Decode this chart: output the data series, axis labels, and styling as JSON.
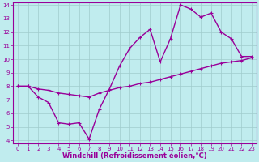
{
  "line1_x": [
    0,
    1,
    2,
    3,
    4,
    5,
    6,
    7,
    8,
    9,
    10,
    11,
    12,
    13,
    14,
    15,
    16,
    17,
    18,
    19,
    20,
    21,
    22,
    23
  ],
  "line1_y": [
    8.0,
    8.0,
    7.8,
    7.7,
    7.5,
    7.4,
    7.3,
    7.2,
    7.5,
    7.7,
    7.9,
    8.0,
    8.2,
    8.3,
    8.5,
    8.7,
    8.9,
    9.1,
    9.3,
    9.5,
    9.7,
    9.8,
    9.9,
    10.1
  ],
  "line2_x": [
    0,
    1,
    2,
    3,
    4,
    5,
    6,
    7,
    8,
    9,
    10,
    11,
    12,
    13,
    14,
    15,
    16,
    17,
    18,
    19,
    20,
    21,
    22,
    23
  ],
  "line2_y": [
    8.0,
    8.0,
    7.2,
    6.8,
    5.3,
    5.2,
    5.3,
    4.1,
    6.3,
    7.8,
    9.5,
    10.8,
    11.6,
    12.2,
    9.8,
    11.5,
    14.0,
    13.7,
    13.1,
    13.4,
    12.0,
    11.5,
    10.2,
    10.2
  ],
  "line_color": "#990099",
  "bg_color": "#c0ecee",
  "grid_color": "#a0cccc",
  "xlabel": "Windchill (Refroidissement éolien,°C)",
  "xlim_min": -0.5,
  "xlim_max": 23.5,
  "ylim_min": 3.8,
  "ylim_max": 14.2,
  "xticks": [
    0,
    1,
    2,
    3,
    4,
    5,
    6,
    7,
    8,
    9,
    10,
    11,
    12,
    13,
    14,
    15,
    16,
    17,
    18,
    19,
    20,
    21,
    22,
    23
  ],
  "yticks": [
    4,
    5,
    6,
    7,
    8,
    9,
    10,
    11,
    12,
    13,
    14
  ],
  "markersize": 2.5,
  "linewidth": 1.0,
  "tick_fontsize": 5.0,
  "xlabel_fontsize": 6.0
}
